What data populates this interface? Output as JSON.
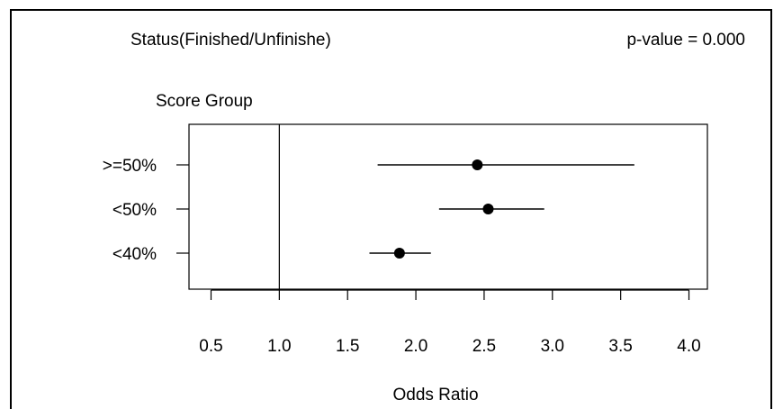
{
  "chart_data": {
    "type": "forest",
    "title": "Status(Finished/Unfinishe)",
    "annotation": "p-value = 0.000",
    "ylabel": "Score Group",
    "xlabel": "Odds Ratio",
    "xlim": [
      0.4,
      4.1
    ],
    "xticks": [
      {
        "value": 0.5,
        "label": "0.5"
      },
      {
        "value": 1.0,
        "label": "1.0"
      },
      {
        "value": 1.5,
        "label": "1.5"
      },
      {
        "value": 2.0,
        "label": "2.0"
      },
      {
        "value": 2.5,
        "label": "2.5"
      },
      {
        "value": 3.0,
        "label": "3.0"
      },
      {
        "value": 3.5,
        "label": "3.5"
      },
      {
        "value": 4.0,
        "label": "4.0"
      }
    ],
    "reference_line": 1.0,
    "groups": [
      {
        "label": ">=50%",
        "estimate": 2.45,
        "lower": 1.72,
        "upper": 3.6
      },
      {
        "label": "<50%",
        "estimate": 2.53,
        "lower": 2.17,
        "upper": 2.94
      },
      {
        "label": "<40%",
        "estimate": 1.88,
        "lower": 1.66,
        "upper": 2.11
      }
    ],
    "grid": false,
    "legend": "none",
    "colors": {
      "line": "#000000",
      "point": "#000000",
      "background": "#ffffff"
    }
  }
}
